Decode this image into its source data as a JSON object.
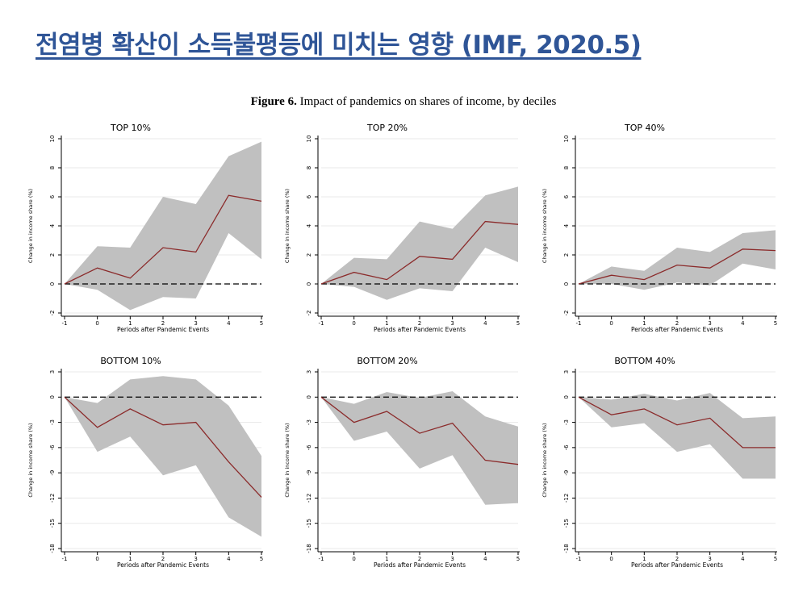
{
  "slide": {
    "title": "전염병 확산이 소득불평등에 미치는 영향 (IMF, 2020.5)"
  },
  "figure": {
    "label": "Figure 6.",
    "caption": "Impact of pandemics on shares of income, by deciles"
  },
  "colors": {
    "band": "#c0c0c0",
    "line": "#8b2b2b",
    "zero_line": "#000000",
    "grid": "#e8e8e8",
    "axis": "#000000",
    "title_blue": "#2f5597"
  },
  "chart_data": [
    {
      "type": "line",
      "title": "TOP 10%",
      "xlabel": "Periods after Pandemic Events",
      "ylabel": "Change in income share (%)",
      "x": [
        -1,
        0,
        1,
        2,
        3,
        4,
        5
      ],
      "xticks": [
        "-1",
        "0",
        "1",
        "2",
        "3",
        "4",
        "5"
      ],
      "ylim": [
        -2,
        10
      ],
      "yticks": [
        -2,
        0,
        2,
        4,
        6,
        8,
        10
      ],
      "series": [
        {
          "name": "estimate",
          "values": [
            0,
            1.1,
            0.4,
            2.5,
            2.2,
            6.1,
            5.7
          ]
        },
        {
          "name": "upper",
          "values": [
            0,
            2.6,
            2.5,
            6.0,
            5.5,
            8.8,
            9.8
          ]
        },
        {
          "name": "lower",
          "values": [
            0,
            -0.4,
            -1.8,
            -0.9,
            -1.0,
            3.5,
            1.7
          ]
        }
      ]
    },
    {
      "type": "line",
      "title": "TOP 20%",
      "xlabel": "Periods after Pandemic Events",
      "ylabel": "Change in income share (%)",
      "x": [
        -1,
        0,
        1,
        2,
        3,
        4,
        5
      ],
      "xticks": [
        "-1",
        "0",
        "1",
        "2",
        "3",
        "4",
        "5"
      ],
      "ylim": [
        -2,
        10
      ],
      "yticks": [
        -2,
        0,
        2,
        4,
        6,
        8,
        10
      ],
      "series": [
        {
          "name": "estimate",
          "values": [
            0,
            0.8,
            0.3,
            1.9,
            1.7,
            4.3,
            4.1
          ]
        },
        {
          "name": "upper",
          "values": [
            0,
            1.8,
            1.7,
            4.3,
            3.8,
            6.1,
            6.7
          ]
        },
        {
          "name": "lower",
          "values": [
            0,
            -0.2,
            -1.1,
            -0.3,
            -0.5,
            2.5,
            1.5
          ]
        }
      ]
    },
    {
      "type": "line",
      "title": "TOP 40%",
      "xlabel": "Periods after Pandemic Events",
      "ylabel": "Change in income share (%)",
      "x": [
        -1,
        0,
        1,
        2,
        3,
        4,
        5
      ],
      "xticks": [
        "-1",
        "0",
        "1",
        "2",
        "3",
        "4",
        "5"
      ],
      "ylim": [
        -2,
        10
      ],
      "yticks": [
        -2,
        0,
        2,
        4,
        6,
        8,
        10
      ],
      "series": [
        {
          "name": "estimate",
          "values": [
            0,
            0.6,
            0.3,
            1.3,
            1.1,
            2.4,
            2.3
          ]
        },
        {
          "name": "upper",
          "values": [
            0,
            1.2,
            0.9,
            2.5,
            2.2,
            3.5,
            3.7
          ]
        },
        {
          "name": "lower",
          "values": [
            0,
            0.0,
            -0.4,
            0.1,
            -0.1,
            1.4,
            1.0
          ]
        }
      ]
    },
    {
      "type": "line",
      "title": "BOTTOM 10%",
      "xlabel": "Periods after Pandemic Events",
      "ylabel": "Change in income share (%)",
      "x": [
        -1,
        0,
        1,
        2,
        3,
        4,
        5
      ],
      "xticks": [
        "-1",
        "0",
        "1",
        "2",
        "3",
        "4",
        "5"
      ],
      "ylim": [
        -18,
        3
      ],
      "yticks": [
        -18,
        -15,
        -12,
        -9,
        -6,
        -3,
        0,
        3
      ],
      "series": [
        {
          "name": "estimate",
          "values": [
            0,
            -3.6,
            -1.4,
            -3.3,
            -3.0,
            -7.7,
            -11.9
          ]
        },
        {
          "name": "upper",
          "values": [
            0,
            -0.7,
            2.1,
            2.5,
            2.1,
            -1.0,
            -7.0
          ]
        },
        {
          "name": "lower",
          "values": [
            0,
            -6.5,
            -4.7,
            -9.3,
            -8.1,
            -14.3,
            -16.6
          ]
        }
      ]
    },
    {
      "type": "line",
      "title": "BOTTOM 20%",
      "xlabel": "Periods after Pandemic Events",
      "ylabel": "Change in income share (%)",
      "x": [
        -1,
        0,
        1,
        2,
        3,
        4,
        5
      ],
      "xticks": [
        "-1",
        "0",
        "1",
        "2",
        "3",
        "4",
        "5"
      ],
      "ylim": [
        -18,
        3
      ],
      "yticks": [
        -18,
        -15,
        -12,
        -9,
        -6,
        -3,
        0,
        3
      ],
      "series": [
        {
          "name": "estimate",
          "values": [
            0,
            -3.0,
            -1.7,
            -4.3,
            -3.1,
            -7.5,
            -8.0
          ]
        },
        {
          "name": "upper",
          "values": [
            0,
            -0.8,
            0.6,
            -0.1,
            0.7,
            -2.3,
            -3.5
          ]
        },
        {
          "name": "lower",
          "values": [
            0,
            -5.2,
            -4.1,
            -8.5,
            -6.9,
            -12.8,
            -12.6
          ]
        }
      ]
    },
    {
      "type": "line",
      "title": "BOTTOM 40%",
      "xlabel": "Periods after Pandemic Events",
      "ylabel": "Change in income share (%)",
      "x": [
        -1,
        0,
        1,
        2,
        3,
        4,
        5
      ],
      "xticks": [
        "-1",
        "0",
        "1",
        "2",
        "3",
        "4",
        "5"
      ],
      "ylim": [
        -18,
        3
      ],
      "yticks": [
        -18,
        -15,
        -12,
        -9,
        -6,
        -3,
        0,
        3
      ],
      "series": [
        {
          "name": "estimate",
          "values": [
            0,
            -2.1,
            -1.4,
            -3.3,
            -2.5,
            -6.0,
            -6.0
          ]
        },
        {
          "name": "upper",
          "values": [
            0,
            -0.3,
            0.4,
            -0.4,
            0.5,
            -2.5,
            -2.3
          ]
        },
        {
          "name": "lower",
          "values": [
            0,
            -3.6,
            -3.1,
            -6.5,
            -5.6,
            -9.7,
            -9.7
          ]
        }
      ]
    }
  ]
}
